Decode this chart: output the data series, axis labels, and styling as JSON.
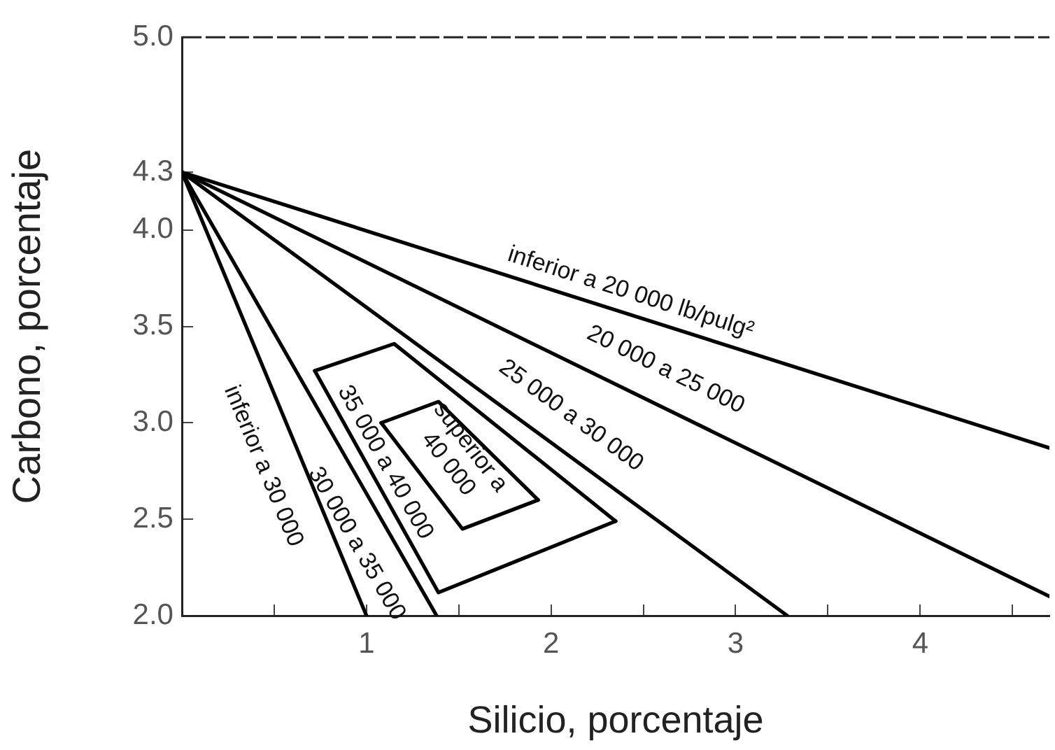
{
  "chart_data": {
    "type": "line",
    "xlabel": "Silicio, porcentaje",
    "ylabel": "Carbono, porcentaje",
    "xlim": [
      0,
      4.7
    ],
    "ylim": [
      2,
      5
    ],
    "xticks": [
      {
        "value": 0.5,
        "label": null
      },
      1,
      {
        "value": 1.5,
        "label": null
      },
      2,
      {
        "value": 2.5,
        "label": null
      },
      3,
      {
        "value": 3.5,
        "label": null
      },
      4,
      {
        "value": 4.5,
        "label": null
      }
    ],
    "yticks": [
      {
        "value": 2,
        "label": "2.0"
      },
      {
        "value": 2.5,
        "label": "2.5"
      },
      {
        "value": 3,
        "label": "3.0"
      },
      {
        "value": 3.5,
        "label": "3.5"
      },
      {
        "value": 4,
        "label": "4.0"
      },
      {
        "value": 4.3,
        "label": "4.3"
      },
      {
        "value": 5,
        "label": "5.0"
      }
    ],
    "grid": false,
    "legend": false,
    "marker": "none",
    "line_style": "solid",
    "series": [
      {
        "color": "#000000",
        "x": [
          0,
          1.0
        ],
        "values": [
          4.3,
          2.0
        ]
      },
      {
        "color": "#000000",
        "x": [
          0,
          1.38
        ],
        "values": [
          4.3,
          2.0
        ]
      },
      {
        "color": "#000000",
        "x": [
          0.72,
          1.15,
          2.35
        ],
        "values": [
          3.27,
          3.41,
          2.49
        ]
      },
      {
        "color": "#000000",
        "x": [
          0.72,
          1.39,
          2.35
        ],
        "values": [
          3.27,
          2.12,
          2.49
        ]
      },
      {
        "color": "#000000",
        "x": [
          1.08,
          1.39,
          1.93
        ],
        "values": [
          3.0,
          3.11,
          2.6
        ]
      },
      {
        "color": "#000000",
        "x": [
          1.08,
          1.52,
          1.93
        ],
        "values": [
          3.0,
          2.45,
          2.6
        ]
      },
      {
        "color": "#000000",
        "x": [
          0,
          3.28
        ],
        "values": [
          4.3,
          2.0
        ]
      },
      {
        "color": "#000000",
        "x": [
          0,
          4.7
        ],
        "values": [
          4.3,
          2.1
        ]
      },
      {
        "color": "#000000",
        "x": [
          0,
          4.7
        ],
        "values": [
          4.3,
          2.87
        ]
      }
    ],
    "annotations": [
      "inferior a 30 000",
      "30 000 a 35 000",
      "35 000 a 40 000",
      "superior a\n40 000",
      "25 000 a 30 000",
      "20 000 a 25 000",
      "inferior a 20 000 lb/pulg²"
    ]
  }
}
